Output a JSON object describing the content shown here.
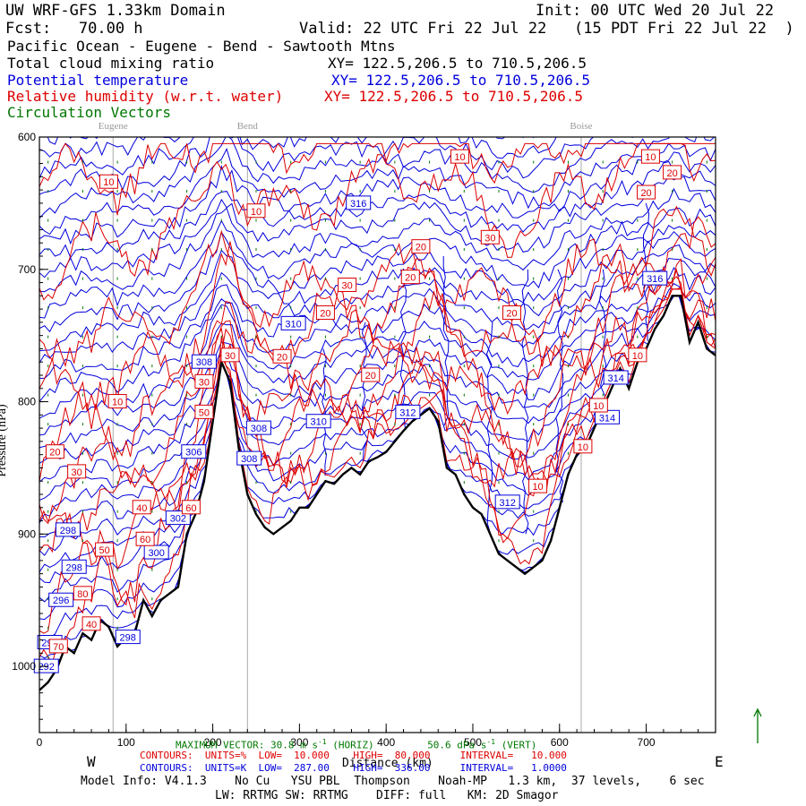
{
  "header": {
    "title": "UW WRF-GFS 1.33km Domain",
    "init": "Init: 00 UTC Wed 20 Jul 22",
    "fcst": "Fcst:   70.00 h",
    "valid": "Valid: 22 UTC Fri 22 Jul 22   (15 PDT Fri 22 Jul 22  )",
    "route": "Pacific Ocean - Eugene - Bend - Sawtooth Mtns"
  },
  "legend": [
    {
      "label": "Total cloud mixing ratio",
      "xy": "XY= 122.5,206.5 to 710.5,206.5",
      "color": "#000000"
    },
    {
      "label": "Potential temperature",
      "xy": "XY= 122.5,206.5 to 710.5,206.5",
      "color": "#0000dd"
    },
    {
      "label": "Relative humidity (w.r.t. water)",
      "xy": "XY= 122.5,206.5 to 710.5,206.5",
      "color": "#dd0000"
    },
    {
      "label": "Circulation Vectors",
      "xy": "",
      "color": "#007700"
    }
  ],
  "footer": {
    "max_vector_label": "MAXIMUM VECTOR:",
    "max_vector_horiz": "30.8 m s",
    "horiz_sup": "-1",
    "horiz_tag": "(HORIZ)",
    "max_vector_vert": "50.6 dPa s",
    "vert_sup": "-1",
    "vert_tag": "(VERT)",
    "rh_contours": "CONTOURS:  UNITS=%  LOW=  10.000    HIGH=  80.000     INTERVAL=   10.000",
    "th_contours": "CONTOURS:  UNITS=K  LOW=  287.00    HIGH=  336.00     INTERVAL=   1.0000",
    "model_info": "Model Info: V4.1.3    No Cu   YSU PBL  Thompson    Noah-MP   1.3 km,  37 levels,    6 sec",
    "model_info2": "LW: RRTMG SW: RRTMG    DIFF: full   KM: 2D Smagor",
    "west": "W",
    "east": "E",
    "xlabel": "Distance (km)",
    "ylabel": "Pressure (hPa)"
  },
  "chart_data": {
    "type": "line",
    "title": "UW WRF-GFS 1.33km Domain",
    "xlabel": "Distance (km)",
    "ylabel": "Pressure (hPa)",
    "xlim": [
      0,
      780
    ],
    "ylim": [
      1050,
      600
    ],
    "x_ticks": [
      0,
      100,
      200,
      300,
      400,
      500,
      600,
      700
    ],
    "y_ticks": [
      600,
      700,
      800,
      900,
      1000
    ],
    "y_tick_labels": [
      "600",
      "700",
      "800",
      "900",
      "1000"
    ],
    "grid": false,
    "places": [
      {
        "name": "Eugene",
        "x": 85
      },
      {
        "name": "Bend",
        "x": 240
      },
      {
        "name": "Boise",
        "x": 625
      }
    ],
    "terrain": {
      "name": "Terrain surface",
      "x": [
        0,
        10,
        20,
        30,
        40,
        50,
        60,
        70,
        80,
        90,
        100,
        110,
        120,
        130,
        140,
        150,
        160,
        170,
        180,
        190,
        200,
        210,
        220,
        230,
        240,
        250,
        260,
        270,
        280,
        290,
        300,
        310,
        320,
        330,
        340,
        350,
        360,
        370,
        380,
        390,
        400,
        410,
        420,
        430,
        440,
        450,
        460,
        470,
        480,
        490,
        500,
        510,
        520,
        530,
        540,
        550,
        560,
        570,
        580,
        590,
        600,
        610,
        620,
        630,
        640,
        650,
        660,
        670,
        680,
        690,
        700,
        710,
        720,
        730,
        740,
        750,
        760,
        770,
        780
      ],
      "p": [
        1018,
        1012,
        1002,
        985,
        990,
        975,
        980,
        965,
        970,
        985,
        978,
        975,
        950,
        962,
        950,
        945,
        940,
        900,
        885,
        860,
        815,
        770,
        785,
        835,
        870,
        885,
        895,
        900,
        895,
        890,
        880,
        880,
        870,
        860,
        862,
        855,
        850,
        855,
        845,
        842,
        838,
        830,
        822,
        815,
        810,
        805,
        815,
        850,
        855,
        870,
        880,
        885,
        900,
        915,
        920,
        925,
        930,
        925,
        920,
        905,
        880,
        855,
        840,
        835,
        820,
        805,
        790,
        775,
        790,
        770,
        760,
        745,
        735,
        720,
        720,
        755,
        740,
        760,
        765
      ]
    },
    "theta_contour_labels": [
      {
        "value": 294,
        "x": 12,
        "p": 982
      },
      {
        "value": 292,
        "x": 8,
        "p": 1000
      },
      {
        "value": 296,
        "x": 25,
        "p": 950
      },
      {
        "value": 298,
        "x": 33,
        "p": 897
      },
      {
        "value": 298,
        "x": 40,
        "p": 925
      },
      {
        "value": 298,
        "x": 102,
        "p": 978
      },
      {
        "value": 300,
        "x": 135,
        "p": 914
      },
      {
        "value": 302,
        "x": 160,
        "p": 888
      },
      {
        "value": 306,
        "x": 178,
        "p": 838
      },
      {
        "value": 308,
        "x": 190,
        "p": 770
      },
      {
        "value": 308,
        "x": 253,
        "p": 820
      },
      {
        "value": 308,
        "x": 242,
        "p": 843
      },
      {
        "value": 310,
        "x": 293,
        "p": 741
      },
      {
        "value": 310,
        "x": 322,
        "p": 815
      },
      {
        "value": 312,
        "x": 425,
        "p": 808
      },
      {
        "value": 312,
        "x": 540,
        "p": 876
      },
      {
        "value": 314,
        "x": 665,
        "p": 782
      },
      {
        "value": 314,
        "x": 655,
        "p": 812
      },
      {
        "value": 316,
        "x": 710,
        "p": 707
      },
      {
        "value": 316,
        "x": 368,
        "p": 650
      }
    ],
    "rh_contour_labels": [
      {
        "value": 10,
        "x": 80,
        "p": 634
      },
      {
        "value": 10,
        "x": 250,
        "p": 656
      },
      {
        "value": 10,
        "x": 90,
        "p": 800
      },
      {
        "value": 10,
        "x": 485,
        "p": 615
      },
      {
        "value": 10,
        "x": 705,
        "p": 615
      },
      {
        "value": 10,
        "x": 690,
        "p": 765
      },
      {
        "value": 10,
        "x": 645,
        "p": 803
      },
      {
        "value": 10,
        "x": 575,
        "p": 864
      },
      {
        "value": 10,
        "x": 627,
        "p": 834
      },
      {
        "value": 20,
        "x": 18,
        "p": 838
      },
      {
        "value": 20,
        "x": 330,
        "p": 733
      },
      {
        "value": 20,
        "x": 280,
        "p": 766
      },
      {
        "value": 20,
        "x": 428,
        "p": 706
      },
      {
        "value": 20,
        "x": 382,
        "p": 780
      },
      {
        "value": 20,
        "x": 440,
        "p": 683
      },
      {
        "value": 20,
        "x": 545,
        "p": 733
      },
      {
        "value": 20,
        "x": 730,
        "p": 627
      },
      {
        "value": 20,
        "x": 700,
        "p": 642
      },
      {
        "value": 30,
        "x": 220,
        "p": 765
      },
      {
        "value": 30,
        "x": 355,
        "p": 712
      },
      {
        "value": 30,
        "x": 520,
        "p": 676
      },
      {
        "value": 30,
        "x": 43,
        "p": 853
      },
      {
        "value": 30,
        "x": 190,
        "p": 785
      },
      {
        "value": 40,
        "x": 118,
        "p": 880
      },
      {
        "value": 40,
        "x": 60,
        "p": 968
      },
      {
        "value": 50,
        "x": 75,
        "p": 912
      },
      {
        "value": 50,
        "x": 190,
        "p": 808
      },
      {
        "value": 60,
        "x": 122,
        "p": 904
      },
      {
        "value": 60,
        "x": 175,
        "p": 880
      },
      {
        "value": 70,
        "x": 22,
        "p": 985
      },
      {
        "value": 80,
        "x": 50,
        "p": 945
      }
    ]
  },
  "colors": {
    "theta": "#0000dd",
    "rh": "#dd0000",
    "terrain": "#000000",
    "vectors": "#007700",
    "places": "#aaaaaa"
  }
}
